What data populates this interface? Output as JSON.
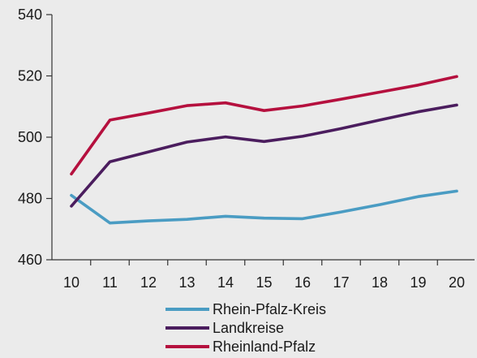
{
  "chart_data": {
    "type": "line",
    "title": "",
    "xlabel": "",
    "ylabel": "",
    "x": [
      "10",
      "11",
      "12",
      "13",
      "14",
      "15",
      "16",
      "17",
      "18",
      "19",
      "20"
    ],
    "ylim": [
      460,
      540
    ],
    "yticks": [
      "460",
      "480",
      "500",
      "520",
      "540"
    ],
    "grid": false,
    "legend_position": "bottom-center",
    "series": [
      {
        "name": "Rhein-Pfalz-Kreis",
        "color": "#4a9cc3",
        "values": [
          481,
          472,
          472.7,
          473.2,
          474.2,
          473.6,
          473.4,
          475.6,
          478,
          480.6,
          482.4
        ]
      },
      {
        "name": "Landkreise",
        "color": "#4b1d5e",
        "values": [
          477.5,
          492,
          495.2,
          498.4,
          500.1,
          498.6,
          500.3,
          502.8,
          505.6,
          508.3,
          510.5
        ]
      },
      {
        "name": "Rheinland-Pfalz",
        "color": "#b5103e",
        "values": [
          488,
          505.6,
          507.9,
          510.3,
          511.2,
          508.7,
          510.2,
          512.4,
          514.7,
          517,
          519.8
        ]
      }
    ]
  }
}
